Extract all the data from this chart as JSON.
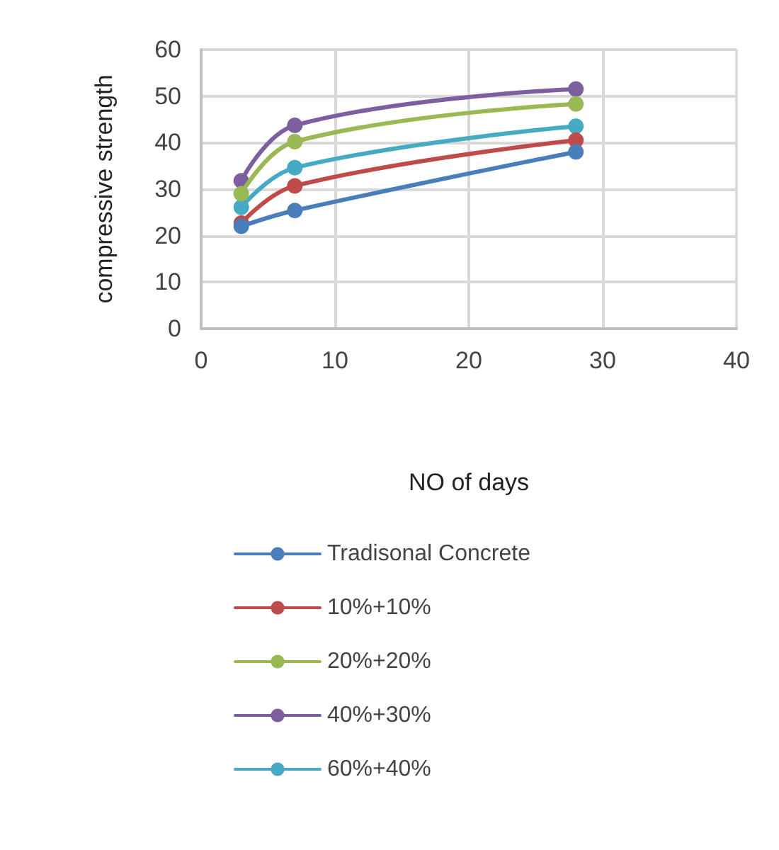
{
  "chart_data": {
    "type": "line",
    "xlabel": "NO of days",
    "ylabel": "compressive strength",
    "xlim": [
      0,
      40
    ],
    "xticks": [
      0,
      10,
      20,
      30,
      40
    ],
    "ylim": [
      0,
      60
    ],
    "yticks": [
      0,
      10,
      20,
      30,
      40,
      50,
      60
    ],
    "x": [
      3,
      7,
      28
    ],
    "series": [
      {
        "name": "Tradisonal Concrete",
        "color": "#4a7ebb",
        "values": [
          22,
          25.4,
          38
        ]
      },
      {
        "name": "10%+10%",
        "color": "#be4b48",
        "values": [
          22.7,
          30.7,
          40.5
        ]
      },
      {
        "name": "20%+20%",
        "color": "#98b954",
        "values": [
          29,
          40.2,
          48.3
        ]
      },
      {
        "name": "40%+30%",
        "color": "#7d5fa0",
        "values": [
          31.8,
          43.7,
          51.5
        ]
      },
      {
        "name": "60%+40%",
        "color": "#46aac5",
        "values": [
          26.1,
          34.6,
          43.5
        ]
      }
    ],
    "grid": true,
    "legend": "bottom",
    "marker": "circle",
    "line_style": "solid"
  }
}
